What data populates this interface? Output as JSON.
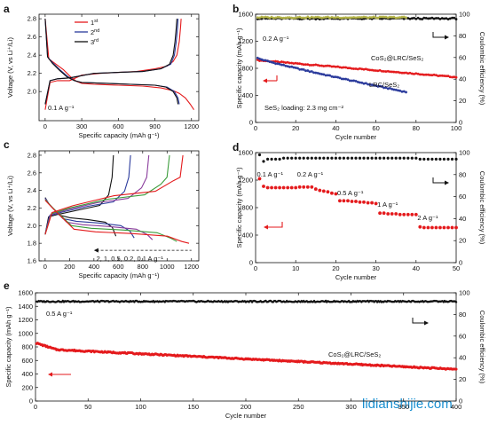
{
  "watermark": "lidianshijie.com",
  "colors": {
    "black": "#111111",
    "red": "#e41a1c",
    "blue": "#2a3a9c",
    "olive": "#b5b54a",
    "purple": "#8a3c9c",
    "green": "#3a9c3a",
    "orange": "#e07020"
  },
  "chart_data": [
    {
      "panel": "a",
      "type": "line",
      "xlabel": "Specific capacity (mAh g⁻¹)",
      "ylabel": "Voltage (V, vs Li⁺/Li)",
      "xlim": [
        -50,
        1260
      ],
      "ylim": [
        1.68,
        2.85
      ],
      "xticks": [
        0,
        300,
        600,
        900,
        1200
      ],
      "yticks": [
        2.0,
        2.2,
        2.4,
        2.6,
        2.8
      ],
      "annotation": "0.1 A g⁻¹",
      "legend": [
        {
          "base": "1",
          "sup": "st",
          "color": "#e41a1c"
        },
        {
          "base": "2",
          "sup": "nd",
          "color": "#2a3a9c"
        },
        {
          "base": "3",
          "sup": "rd",
          "color": "#111111"
        }
      ],
      "series": [
        {
          "name": "1st discharge",
          "color": "#e41a1c",
          "x": [
            0,
            30,
            90,
            150,
            210,
            260,
            300,
            400,
            600,
            800,
            950,
            1050,
            1100,
            1150,
            1190,
            1220
          ],
          "y": [
            2.8,
            2.36,
            2.3,
            2.24,
            2.16,
            2.11,
            2.09,
            2.08,
            2.07,
            2.06,
            2.04,
            2.01,
            1.98,
            1.93,
            1.86,
            1.8
          ]
        },
        {
          "name": "1st charge",
          "color": "#e41a1c",
          "x": [
            0,
            40,
            100,
            200,
            300,
            450,
            600,
            750,
            900,
            1000,
            1050,
            1080,
            1100,
            1110,
            1115
          ],
          "y": [
            1.8,
            2.1,
            2.12,
            2.12,
            2.18,
            2.2,
            2.21,
            2.22,
            2.25,
            2.28,
            2.33,
            2.4,
            2.55,
            2.7,
            2.8
          ]
        },
        {
          "name": "2nd discharge",
          "color": "#2a3a9c",
          "x": [
            0,
            20,
            60,
            120,
            180,
            240,
            300,
            500,
            700,
            900,
            1000,
            1060,
            1090,
            1100
          ],
          "y": [
            2.8,
            2.38,
            2.32,
            2.24,
            2.17,
            2.12,
            2.1,
            2.09,
            2.08,
            2.07,
            2.05,
            2.0,
            1.93,
            1.86
          ]
        },
        {
          "name": "2nd charge",
          "color": "#2a3a9c",
          "x": [
            0,
            40,
            100,
            200,
            400,
            600,
            800,
            950,
            1030,
            1060,
            1075,
            1085,
            1090
          ],
          "y": [
            1.86,
            2.12,
            2.14,
            2.15,
            2.2,
            2.21,
            2.22,
            2.25,
            2.3,
            2.4,
            2.55,
            2.7,
            2.8
          ]
        },
        {
          "name": "3rd discharge",
          "color": "#111111",
          "x": [
            0,
            20,
            60,
            120,
            180,
            240,
            300,
            500,
            700,
            900,
            990,
            1050,
            1080,
            1090
          ],
          "y": [
            2.8,
            2.38,
            2.31,
            2.23,
            2.16,
            2.12,
            2.1,
            2.09,
            2.08,
            2.07,
            2.05,
            2.0,
            1.93,
            1.86
          ]
        },
        {
          "name": "3rd charge",
          "color": "#111111",
          "x": [
            0,
            40,
            100,
            200,
            400,
            600,
            800,
            950,
            1020,
            1050,
            1065,
            1075,
            1080
          ],
          "y": [
            1.86,
            2.12,
            2.14,
            2.15,
            2.2,
            2.21,
            2.22,
            2.25,
            2.3,
            2.4,
            2.55,
            2.7,
            2.8
          ]
        }
      ]
    },
    {
      "panel": "b",
      "type": "scatter",
      "xlabel": "Cycle number",
      "ylabel": "Specific capacity (mAh g⁻¹)",
      "y2label": "Coulombic efficiency (%)",
      "xlim": [
        0,
        100
      ],
      "ylim": [
        0,
        1600
      ],
      "y2lim": [
        0,
        100
      ],
      "xticks": [
        0,
        20,
        40,
        60,
        80,
        100
      ],
      "yticks": [
        0,
        400,
        800,
        1200,
        1600
      ],
      "y2ticks": [
        0,
        20,
        40,
        60,
        80,
        100
      ],
      "annotations": [
        "0.2 A g⁻¹",
        "CoS₂@LRC/SeS₂",
        "LRC/SeS₂",
        "SeS₂ loading: 2.3 mg cm⁻²"
      ],
      "series": [
        {
          "name": "CoS₂@LRC/SeS₂",
          "color": "#e41a1c",
          "axis": "left",
          "x_start": 1,
          "x_end": 100,
          "y_start": 920,
          "y_end": 670
        },
        {
          "name": "LRC/SeS₂",
          "color": "#2a3a9c",
          "axis": "left",
          "x_start": 1,
          "x_end": 75,
          "y_start": 950,
          "y_end": 450
        },
        {
          "name": "CE CoS₂@LRC/SeS₂",
          "color": "#111111",
          "axis": "right",
          "x_start": 1,
          "x_end": 100,
          "y_start": 96,
          "y_end": 96
        },
        {
          "name": "CE LRC/SeS₂",
          "color": "#b5b54a",
          "axis": "right",
          "x_start": 1,
          "x_end": 75,
          "y_start": 97,
          "y_end": 97
        }
      ]
    },
    {
      "panel": "c",
      "type": "line",
      "xlabel": "Specific capacity (mAh g⁻¹)",
      "ylabel": "Voltage (V, vs Li⁺/Li)",
      "xlim": [
        -50,
        1260
      ],
      "ylim": [
        1.6,
        2.85
      ],
      "xticks": [
        0,
        200,
        400,
        600,
        800,
        1000,
        1200
      ],
      "yticks": [
        1.6,
        1.8,
        2.0,
        2.2,
        2.4,
        2.6,
        2.8
      ],
      "annotation": "2, 1, 0.5, 0.2, 0.1 A g⁻¹",
      "series": [
        {
          "name": "2 A g⁻¹",
          "color": "#111111",
          "discharge": 580,
          "charge": 560
        },
        {
          "name": "1 A g⁻¹",
          "color": "#2a3a9c",
          "discharge": 730,
          "charge": 700
        },
        {
          "name": "0.5 A g⁻¹",
          "color": "#8a3c9c",
          "discharge": 880,
          "charge": 850
        },
        {
          "name": "0.2 A g⁻¹",
          "color": "#3a9c3a",
          "discharge": 1080,
          "charge": 1020
        },
        {
          "name": "0.1 A g⁻¹",
          "color": "#e41a1c",
          "discharge": 1180,
          "charge": 1130
        }
      ]
    },
    {
      "panel": "d",
      "type": "scatter",
      "xlabel": "Cycle number",
      "ylabel": "Specific capacity (mAh g⁻¹)",
      "y2label": "Coulombic efficiency (%)",
      "xlim": [
        0,
        50
      ],
      "ylim": [
        0,
        1600
      ],
      "y2lim": [
        0,
        100
      ],
      "xticks": [
        0,
        10,
        20,
        30,
        40,
        50
      ],
      "yticks": [
        0,
        400,
        800,
        1200,
        1600
      ],
      "y2ticks": [
        0,
        20,
        40,
        60,
        80,
        100
      ],
      "rates": [
        "0.1 A g⁻¹",
        "0.2 A g⁻¹",
        "0.5 A g⁻¹",
        "1 A g⁻¹",
        "2 A g⁻¹"
      ],
      "capacity": [
        1220,
        1110,
        1090,
        1090,
        1090,
        1090,
        1090,
        1090,
        1090,
        1090,
        1100,
        1100,
        1100,
        1100,
        1070,
        1050,
        1040,
        1030,
        1010,
        1000,
        900,
        900,
        900,
        890,
        890,
        880,
        880,
        870,
        870,
        860,
        720,
        720,
        710,
        710,
        710,
        700,
        700,
        700,
        700,
        700,
        520,
        510,
        510,
        510,
        510,
        510,
        510,
        510,
        510,
        510
      ],
      "ce": [
        98,
        92,
        94,
        94,
        94,
        94,
        95,
        95,
        95,
        95,
        95,
        95,
        95,
        95,
        95,
        95,
        95,
        95,
        95,
        95,
        95,
        95,
        95,
        95,
        95,
        95,
        95,
        95,
        95,
        95,
        95,
        95,
        95,
        95,
        95,
        95,
        95,
        95,
        95,
        95,
        94,
        94,
        94,
        94,
        94,
        94,
        94,
        94,
        94,
        94
      ]
    },
    {
      "panel": "e",
      "type": "scatter",
      "xlabel": "Cycle number",
      "ylabel": "Specific capacity (mAh g⁻¹)",
      "y2label": "Coulombic efficiency (%)",
      "xlim": [
        0,
        400
      ],
      "ylim": [
        0,
        1600
      ],
      "y2lim": [
        0,
        100
      ],
      "xticks": [
        0,
        50,
        100,
        150,
        200,
        250,
        300,
        350,
        400
      ],
      "yticks": [
        0,
        200,
        400,
        600,
        800,
        1000,
        1200,
        1400,
        1600
      ],
      "y2ticks": [
        0,
        20,
        40,
        60,
        80,
        100
      ],
      "annotations": [
        "0.5 A g⁻¹",
        "CoS₂@LRC/SeS₂"
      ],
      "series": [
        {
          "name": "CoS₂@LRC/SeS₂",
          "color": "#e41a1c",
          "axis": "left",
          "x_start": 1,
          "x_end": 400,
          "y_start": 860,
          "y_end": 470
        },
        {
          "name": "CE",
          "color": "#111111",
          "axis": "right",
          "x_start": 1,
          "x_end": 400,
          "y_start": 92,
          "y_end": 92
        }
      ]
    }
  ]
}
